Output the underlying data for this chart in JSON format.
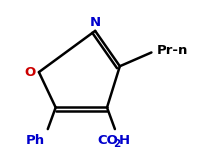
{
  "background_color": "#ffffff",
  "ring_color": "#000000",
  "N_color": "#0000cc",
  "O_color": "#cc0000",
  "CO2H_color": "#0000cc",
  "Ph_color": "#0000cc",
  "Pr_color": "#000000",
  "label_N": "N",
  "label_O": "O",
  "label_CO2H_co": "CO",
  "label_CO2H_2": "2",
  "label_CO2H_h": "H",
  "label_Ph": "Ph",
  "label_Pr": "Pr-n",
  "line_width": 1.8,
  "figsize": [
    2.15,
    1.57
  ],
  "dpi": 100
}
